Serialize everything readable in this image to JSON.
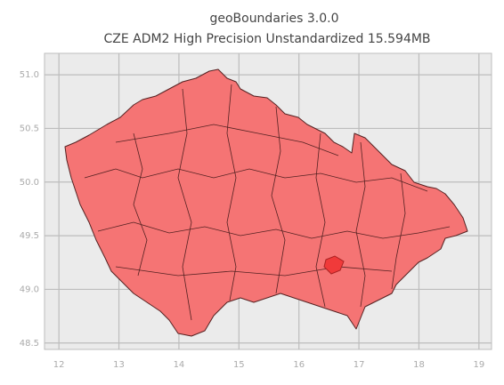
{
  "chart_data": {
    "type": "map",
    "title": "geoBoundaries 3.0.0",
    "subtitle": "CZE ADM2 High Precision Unstandardized 15.594MB",
    "xlim": [
      11.76,
      19.21
    ],
    "xticks": [
      12,
      13,
      14,
      15,
      16,
      17,
      18,
      19
    ],
    "ylim": [
      48.44,
      51.2
    ],
    "yticks": [
      48.5,
      {
        "value": 49,
        "label": "49.0"
      },
      49.5,
      {
        "value": 50,
        "label": "50.0"
      },
      50.5,
      {
        "value": 51,
        "label": "51.0"
      }
    ],
    "grid": true,
    "color": "#f57474"
  }
}
